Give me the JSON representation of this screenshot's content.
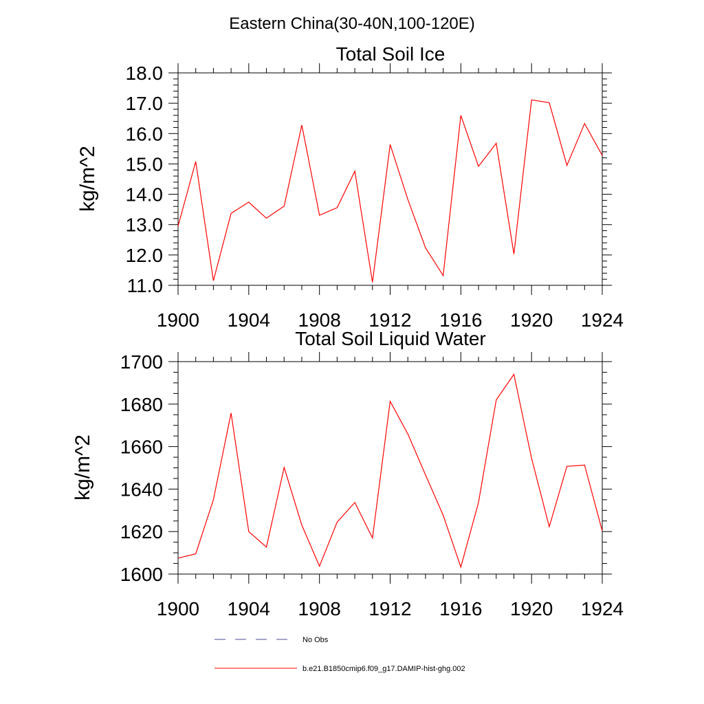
{
  "figure": {
    "title": "Eastern China(30-40N,100-120E)"
  },
  "chart_data": [
    {
      "type": "line",
      "title": "Total Soil Ice",
      "xlabel": "",
      "ylabel": "kg/m^2",
      "xlim": [
        1900,
        1924
      ],
      "ylim": [
        11.0,
        18.0
      ],
      "xticks": [
        1900,
        1904,
        1908,
        1912,
        1916,
        1920,
        1924
      ],
      "xtick_labels": [
        "1900",
        "1904",
        "1908",
        "1912",
        "1916",
        "1920",
        "1924"
      ],
      "yticks": [
        11,
        12,
        13,
        14,
        15,
        16,
        17,
        18
      ],
      "ytick_labels": [
        "11.0",
        "12.0",
        "13.0",
        "14.0",
        "15.0",
        "16.0",
        "17.0",
        "18.0"
      ],
      "grid": false,
      "series": [
        {
          "name": "b.e21.B1850cmip6.f09_g17.DAMIP-hist-ghg.002",
          "color": "#ff0000",
          "x": [
            1900,
            1901,
            1902,
            1903,
            1904,
            1905,
            1906,
            1907,
            1908,
            1909,
            1910,
            1911,
            1912,
            1913,
            1914,
            1915,
            1916,
            1917,
            1918,
            1919,
            1920,
            1921,
            1922,
            1923,
            1924
          ],
          "y": [
            12.95,
            15.08,
            11.15,
            13.37,
            13.74,
            13.21,
            13.61,
            16.28,
            13.31,
            13.56,
            14.76,
            11.1,
            15.64,
            13.83,
            12.24,
            11.32,
            16.6,
            14.92,
            15.68,
            12.03,
            17.11,
            17.02,
            14.95,
            16.33,
            15.28
          ]
        }
      ]
    },
    {
      "type": "line",
      "title": "Total Soil Liquid Water",
      "xlabel": "",
      "ylabel": "kg/m^2",
      "xlim": [
        1900,
        1924
      ],
      "ylim": [
        1600,
        1700
      ],
      "xticks": [
        1900,
        1904,
        1908,
        1912,
        1916,
        1920,
        1924
      ],
      "xtick_labels": [
        "1900",
        "1904",
        "1908",
        "1912",
        "1916",
        "1920",
        "1924"
      ],
      "yticks": [
        1600,
        1620,
        1640,
        1660,
        1680,
        1700
      ],
      "ytick_labels": [
        "1600",
        "1620",
        "1640",
        "1660",
        "1680",
        "1700"
      ],
      "grid": false,
      "series": [
        {
          "name": "b.e21.B1850cmip6.f09_g17.DAMIP-hist-ghg.002",
          "color": "#ff0000",
          "x": [
            1900,
            1901,
            1902,
            1903,
            1904,
            1905,
            1906,
            1907,
            1908,
            1909,
            1910,
            1911,
            1912,
            1913,
            1914,
            1915,
            1916,
            1917,
            1918,
            1919,
            1920,
            1921,
            1922,
            1923,
            1924
          ],
          "y": [
            1607.5,
            1609.5,
            1635,
            1675.8,
            1620,
            1612.7,
            1650.2,
            1623,
            1603.7,
            1624.5,
            1633.7,
            1617,
            1681.3,
            1666,
            1646.7,
            1627.7,
            1603.3,
            1633.7,
            1682,
            1694,
            1654.5,
            1622.3,
            1650.7,
            1651.3,
            1620.3
          ]
        }
      ]
    }
  ],
  "legend": {
    "placement": "bottom",
    "entries": [
      {
        "label": "No Obs",
        "color": "#4a4a9a",
        "style": "dashed"
      },
      {
        "label": "b.e21.B1850cmip6.f09_g17.DAMIP-hist-ghg.002",
        "color": "#ff0000",
        "style": "solid"
      }
    ]
  }
}
